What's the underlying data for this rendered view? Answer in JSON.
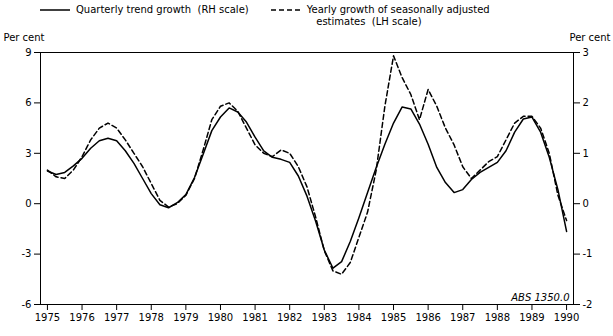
{
  "chart_data": {
    "type": "line",
    "x": [
      1975.0,
      1975.25,
      1975.5,
      1975.75,
      1976.0,
      1976.25,
      1976.5,
      1976.75,
      1977.0,
      1977.25,
      1977.5,
      1977.75,
      1978.0,
      1978.25,
      1978.5,
      1978.75,
      1979.0,
      1979.25,
      1979.5,
      1979.75,
      1980.0,
      1980.25,
      1980.5,
      1980.75,
      1981.0,
      1981.25,
      1981.5,
      1981.75,
      1982.0,
      1982.25,
      1982.5,
      1982.75,
      1983.0,
      1983.25,
      1983.5,
      1983.75,
      1984.0,
      1984.25,
      1984.5,
      1984.75,
      1985.0,
      1985.25,
      1985.5,
      1985.75,
      1986.0,
      1986.25,
      1986.5,
      1986.75,
      1987.0,
      1987.25,
      1987.5,
      1987.75,
      1988.0,
      1988.25,
      1988.5,
      1988.75,
      1989.0,
      1989.25,
      1989.5,
      1989.75,
      1990.0
    ],
    "series": [
      {
        "name": "Quarterly trend growth  (RH scale)",
        "color": "#000000",
        "line_style": "solid",
        "axis": "y2",
        "values": [
          0.65,
          0.58,
          0.62,
          0.75,
          0.9,
          1.1,
          1.25,
          1.3,
          1.25,
          1.05,
          0.8,
          0.5,
          0.2,
          -0.02,
          -0.08,
          0.02,
          0.18,
          0.52,
          0.98,
          1.45,
          1.72,
          1.9,
          1.82,
          1.62,
          1.32,
          1.05,
          0.92,
          0.88,
          0.82,
          0.55,
          0.15,
          -0.35,
          -0.92,
          -1.28,
          -1.15,
          -0.75,
          -0.28,
          0.22,
          0.72,
          1.18,
          1.6,
          1.92,
          1.88,
          1.58,
          1.18,
          0.72,
          0.42,
          0.22,
          0.28,
          0.48,
          0.62,
          0.72,
          0.82,
          1.05,
          1.42,
          1.68,
          1.72,
          1.42,
          0.92,
          0.28,
          -0.55
        ]
      },
      {
        "name": "Yearly growth of seasonally adjusted\n   estimates  (LH scale)",
        "color": "#000000",
        "line_style": "dashed",
        "values": [
          2.0,
          1.6,
          1.5,
          2.0,
          2.8,
          3.8,
          4.5,
          4.8,
          4.5,
          3.8,
          3.0,
          2.2,
          1.2,
          0.2,
          -0.2,
          0.0,
          0.5,
          1.5,
          3.2,
          5.0,
          5.8,
          6.0,
          5.5,
          4.5,
          3.5,
          3.0,
          2.8,
          3.2,
          3.0,
          2.2,
          1.0,
          -0.8,
          -2.8,
          -4.0,
          -4.2,
          -3.5,
          -2.0,
          -0.5,
          2.0,
          5.8,
          8.8,
          7.5,
          6.5,
          5.0,
          6.8,
          5.8,
          4.5,
          3.5,
          2.2,
          1.5,
          2.0,
          2.5,
          2.8,
          3.8,
          4.8,
          5.2,
          5.2,
          4.5,
          3.0,
          0.5,
          -1.0
        ]
      }
    ],
    "xlim": [
      1974.8,
      1990.2
    ],
    "xticks": [
      1975,
      1976,
      1977,
      1978,
      1979,
      1980,
      1981,
      1982,
      1983,
      1984,
      1985,
      1986,
      1987,
      1988,
      1989,
      1990
    ],
    "ylim": [
      -6,
      9
    ],
    "yticks": [
      -6,
      -3,
      0,
      3,
      6,
      9
    ],
    "y2lim": [
      -2,
      3
    ],
    "y2ticks": [
      -2,
      -1,
      0,
      1,
      2,
      3
    ],
    "ylabel": "Per cent",
    "y2label": "Per cent",
    "annotation": "ABS 1350.0",
    "legend": "upper left",
    "grid": false
  }
}
